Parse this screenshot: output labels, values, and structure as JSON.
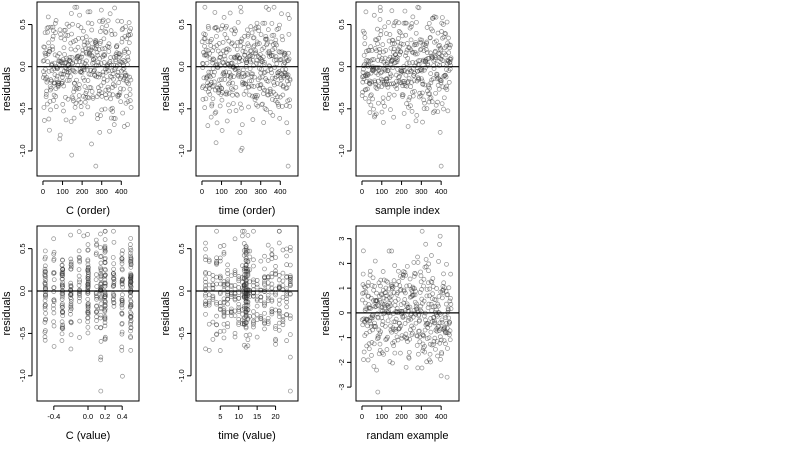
{
  "chart_data": [
    {
      "type": "scatter",
      "xlabel": "C (order)",
      "ylabel": "residuals",
      "xlim": [
        -10,
        470
      ],
      "ylim": [
        -1.25,
        0.72
      ],
      "xticks": [
        0,
        100,
        200,
        300,
        400
      ],
      "xtick_labels": [
        "0",
        "100",
        "200",
        "300",
        "400"
      ],
      "yticks": [
        -1.0,
        -0.5,
        0.0,
        0.5
      ],
      "ytick_labels": [
        "-1.0",
        "-0.5",
        "0.0",
        "0.5"
      ],
      "reference_line_y": 0,
      "n_points": 450,
      "x_distribution": "index 1..450",
      "y_spread": 0.3,
      "outliers": [
        {
          "x": 270,
          "y": -1.18
        },
        {
          "x": 290,
          "y": -0.78
        },
        {
          "x": 415,
          "y": -0.71
        },
        {
          "x": 230,
          "y": 0.65
        }
      ]
    },
    {
      "type": "scatter",
      "xlabel": "time (order)",
      "ylabel": "residuals",
      "xlim": [
        -10,
        470
      ],
      "ylim": [
        -1.25,
        0.72
      ],
      "xticks": [
        0,
        100,
        200,
        300,
        400
      ],
      "xtick_labels": [
        "0",
        "100",
        "200",
        "300",
        "400"
      ],
      "yticks": [
        -1.0,
        -0.5,
        0.0,
        0.5
      ],
      "ytick_labels": [
        "-1.0",
        "-0.5",
        "0.0",
        "0.5"
      ],
      "reference_line_y": 0,
      "n_points": 450,
      "x_distribution": "index 1..450",
      "y_spread": 0.3,
      "outliers": [
        {
          "x": 440,
          "y": -1.18
        },
        {
          "x": 440,
          "y": -0.78
        },
        {
          "x": 30,
          "y": -0.7
        },
        {
          "x": 200,
          "y": 0.65
        }
      ]
    },
    {
      "type": "scatter",
      "xlabel": "sample index",
      "ylabel": "residuals",
      "xlim": [
        -10,
        470
      ],
      "ylim": [
        -1.25,
        0.72
      ],
      "xticks": [
        0,
        100,
        200,
        300,
        400
      ],
      "xtick_labels": [
        "0",
        "100",
        "200",
        "300",
        "400"
      ],
      "yticks": [
        -1.0,
        -0.5,
        0.0,
        0.5
      ],
      "ytick_labels": [
        "-1.0",
        "-0.5",
        "0.0",
        "0.5"
      ],
      "reference_line_y": 0,
      "n_points": 450,
      "x_distribution": "index 1..450",
      "y_spread": 0.3,
      "outliers": [
        {
          "x": 400,
          "y": -1.18
        },
        {
          "x": 395,
          "y": -0.78
        },
        {
          "x": 20,
          "y": 0.65
        },
        {
          "x": 160,
          "y": -0.6
        }
      ]
    },
    {
      "type": "scatter",
      "xlabel": "C (value)",
      "ylabel": "residuals",
      "xlim": [
        -0.55,
        0.55
      ],
      "ylim": [
        -1.25,
        0.72
      ],
      "xticks": [
        -0.4,
        0.0,
        0.2,
        0.4
      ],
      "xtick_labels": [
        "-0.4",
        "0.0",
        "0.2",
        "0.4"
      ],
      "yticks": [
        -1.0,
        -0.5,
        0.0,
        0.5
      ],
      "ytick_labels": [
        "-1.0",
        "-0.5",
        "0.0",
        "0.5"
      ],
      "reference_line_y": 0,
      "n_points": 450,
      "x_distribution": "discrete columns at -0.5,-0.4,-0.3,-0.2,-0.1,0.0,0.1,0.15,0.2,0.3,0.4,0.5",
      "y_spread": 0.3,
      "outliers": [
        {
          "x": 0.15,
          "y": -1.18
        },
        {
          "x": 0.15,
          "y": -0.78
        },
        {
          "x": 0.5,
          "y": -0.7
        },
        {
          "x": -0.05,
          "y": 0.65
        }
      ]
    },
    {
      "type": "scatter",
      "xlabel": "time (value)",
      "ylabel": "residuals",
      "xlim": [
        -0.5,
        25
      ],
      "ylim": [
        -1.25,
        0.72
      ],
      "xticks": [
        5,
        10,
        15,
        20
      ],
      "xtick_labels": [
        "5",
        "10",
        "15",
        "20"
      ],
      "yticks": [
        -1.0,
        -0.5,
        0.0,
        0.5
      ],
      "ytick_labels": [
        "-1.0",
        "-0.5",
        "0.0",
        "0.5"
      ],
      "reference_line_y": 0,
      "n_points": 450,
      "x_distribution": "values 1..24 with dense columns near 12",
      "y_spread": 0.3,
      "outliers": [
        {
          "x": 24,
          "y": -1.18
        },
        {
          "x": 24,
          "y": -0.78
        },
        {
          "x": 2,
          "y": -0.7
        },
        {
          "x": 11,
          "y": 0.65
        }
      ]
    },
    {
      "type": "scatter",
      "xlabel": "randam example",
      "ylabel": "residuals",
      "xlim": [
        -10,
        470
      ],
      "ylim": [
        -3.4,
        3.35
      ],
      "xticks": [
        0,
        100,
        200,
        300,
        400
      ],
      "xtick_labels": [
        "0",
        "100",
        "200",
        "300",
        "400"
      ],
      "yticks": [
        -3,
        -2,
        -1,
        0,
        1,
        2,
        3
      ],
      "ytick_labels": [
        "-3",
        "-2",
        "-1",
        "0",
        "1",
        "2",
        "3"
      ],
      "reference_line_y": 0,
      "n_points": 450,
      "x_distribution": "index 1..450",
      "y_spread": 1.0,
      "outliers": [
        {
          "x": 80,
          "y": -3.2
        },
        {
          "x": 395,
          "y": 3.1
        },
        {
          "x": 430,
          "y": -2.6
        },
        {
          "x": 150,
          "y": 2.5
        }
      ]
    }
  ]
}
